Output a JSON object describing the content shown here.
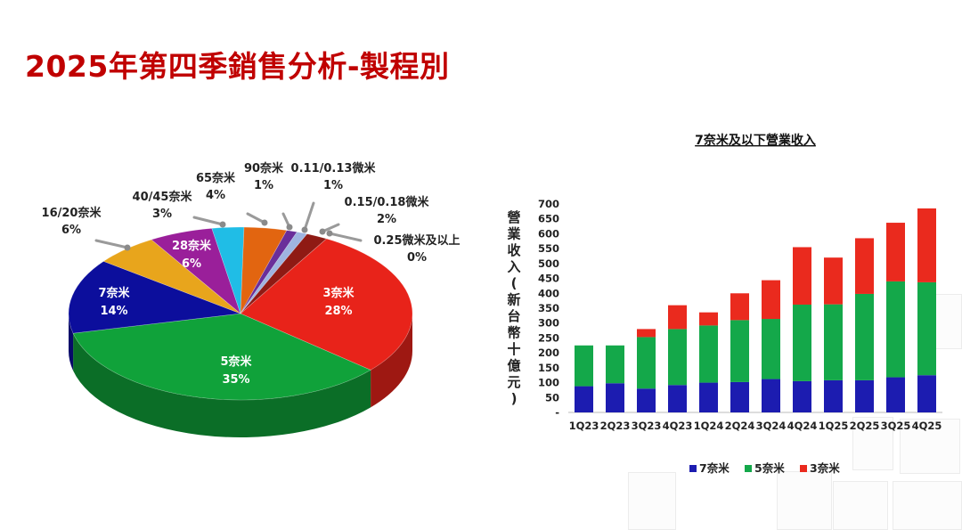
{
  "page": {
    "title": "2025年第四季銷售分析-製程別"
  },
  "chart_data": [
    {
      "type": "pie",
      "slices": [
        {
          "name": "3奈米",
          "value": 28,
          "label": "28%",
          "color": "#e8231a"
        },
        {
          "name": "5奈米",
          "value": 35,
          "label": "35%",
          "color": "#10a23a"
        },
        {
          "name": "7奈米",
          "value": 14,
          "label": "14%",
          "color": "#0c0e9c"
        },
        {
          "name": "16/20奈米",
          "value": 6,
          "label": "6%",
          "color": "#e8a51c"
        },
        {
          "name": "28奈米",
          "value": 6,
          "label": "6%",
          "color": "#9a1f9a"
        },
        {
          "name": "40/45奈米",
          "value": 3,
          "label": "3%",
          "color": "#20bde6"
        },
        {
          "name": "65奈米",
          "value": 4,
          "label": "4%",
          "color": "#e26510"
        },
        {
          "name": "90奈米",
          "value": 1,
          "label": "1%",
          "color": "#6a2e9a"
        },
        {
          "name": "0.11/0.13微米",
          "value": 1,
          "label": "1%",
          "color": "#9fb4e0"
        },
        {
          "name": "0.15/0.18微米",
          "value": 2,
          "label": "2%",
          "color": "#8f1a14"
        },
        {
          "name": "0.25微米及以上",
          "value": 0,
          "label": "0%",
          "color": "#5a2a1a"
        }
      ]
    },
    {
      "type": "bar",
      "stacked": true,
      "title": "7奈米及以下營業收入",
      "ylabel": "營業收入 (新台幣十億元)",
      "ylim": [
        0,
        700
      ],
      "yticks": [
        "-",
        "50",
        "100",
        "150",
        "200",
        "250",
        "300",
        "350",
        "400",
        "450",
        "500",
        "550",
        "600",
        "650",
        "700"
      ],
      "categories": [
        "1Q23",
        "2Q23",
        "3Q23",
        "4Q23",
        "1Q24",
        "2Q24",
        "3Q24",
        "4Q24",
        "1Q25",
        "2Q25",
        "3Q25",
        "4Q25"
      ],
      "series": [
        {
          "name": "7奈米",
          "color": "#1c1cb0",
          "values": [
            88,
            98,
            80,
            92,
            100,
            102,
            112,
            105,
            108,
            108,
            118,
            125
          ]
        },
        {
          "name": "5奈米",
          "color": "#14a84a",
          "values": [
            137,
            127,
            173,
            188,
            192,
            208,
            202,
            257,
            255,
            290,
            322,
            312
          ]
        },
        {
          "name": "3奈米",
          "color": "#ea2a1e",
          "values": [
            0,
            0,
            27,
            80,
            44,
            90,
            130,
            193,
            157,
            187,
            197,
            248
          ]
        }
      ],
      "legend_position": "bottom"
    }
  ]
}
